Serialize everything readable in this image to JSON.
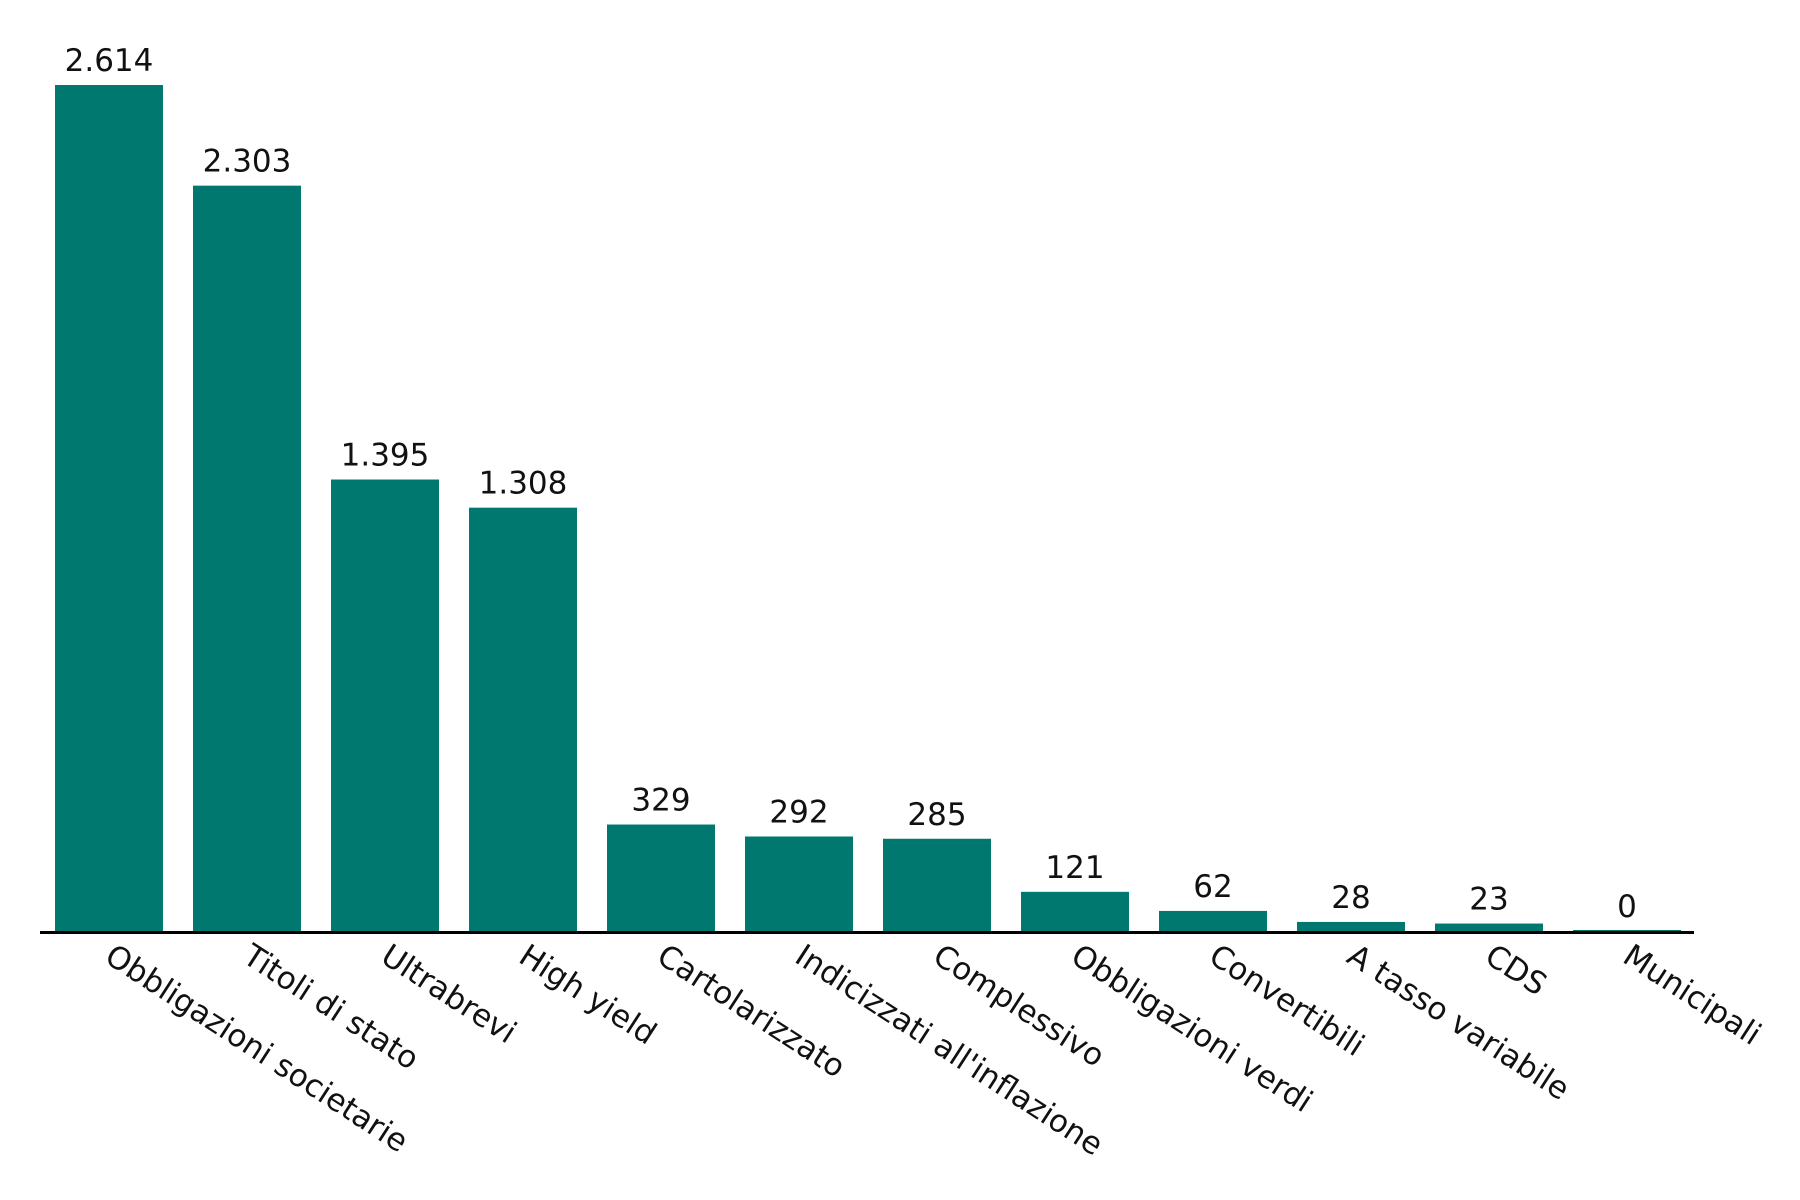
{
  "chart_data": {
    "type": "bar",
    "title": "",
    "xlabel": "",
    "ylabel": "",
    "grid": false,
    "legend": "none",
    "ylim": [
      0,
      2614
    ],
    "bar_color": "#00776F",
    "axis_color": "#000000",
    "categories": [
      "Obbligazioni societarie",
      "Titoli di stato",
      "Ultrabrevi",
      "High yield",
      "Cartolarizzato",
      "Indicizzati all'inflazione",
      "Complessivo",
      "Obbligazioni verdi",
      "Convertibili",
      "A tasso variabile",
      "CDS",
      "Municipali"
    ],
    "values": [
      2614,
      2303,
      1395,
      1308,
      329,
      292,
      285,
      121,
      62,
      28,
      23,
      0
    ],
    "value_labels": [
      "2.614",
      "2.303",
      "1.395",
      "1.308",
      "329",
      "292",
      "285",
      "121",
      "62",
      "28",
      "23",
      "0"
    ]
  }
}
